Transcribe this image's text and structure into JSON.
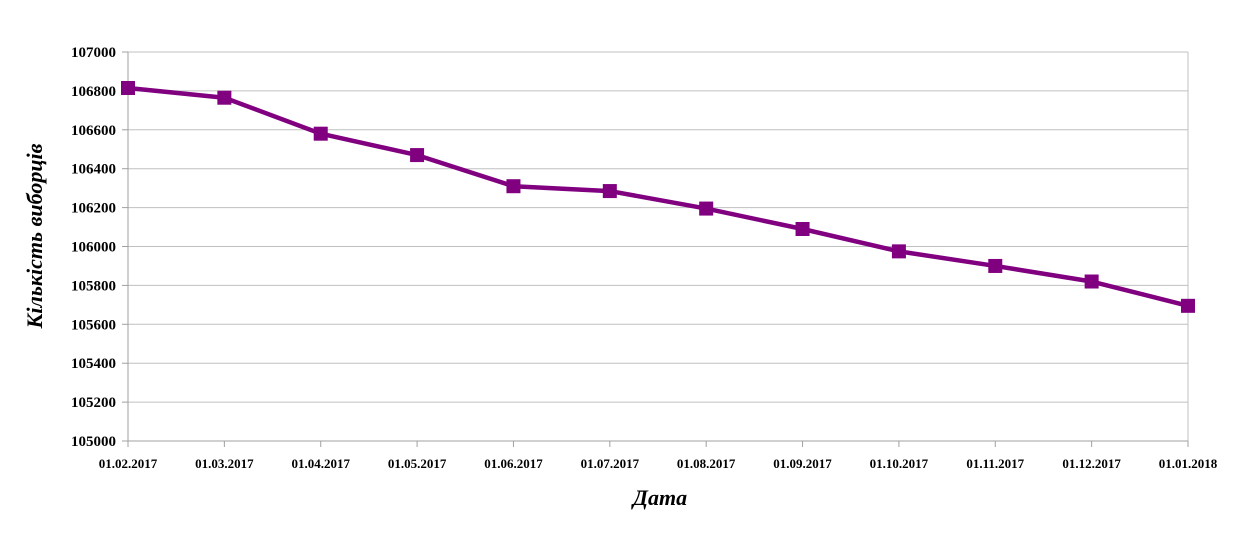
{
  "chart_data": {
    "type": "line",
    "title": "",
    "xlabel": "Дата",
    "ylabel": "Кількість виборців",
    "ylim": [
      105000,
      107000
    ],
    "y_ticks": [
      "105000",
      "105200",
      "105400",
      "105600",
      "105800",
      "106000",
      "106200",
      "106400",
      "106600",
      "106800",
      "107000"
    ],
    "categories": [
      "01.02.2017",
      "01.03.2017",
      "01.04.2017",
      "01.05.2017",
      "01.06.2017",
      "01.07.2017",
      "01.08.2017",
      "01.09.2017",
      "01.10.2017",
      "01.11.2017",
      "01.12.2017",
      "01.01.2018"
    ],
    "series": [
      {
        "values": [
          106815,
          106765,
          106580,
          106470,
          106310,
          106285,
          106195,
          106090,
          105975,
          105900,
          105820,
          105695
        ],
        "color": "#800080",
        "marker": "square"
      }
    ],
    "grid": true,
    "legend": "none",
    "gridline_color": "#c0c0c0"
  }
}
